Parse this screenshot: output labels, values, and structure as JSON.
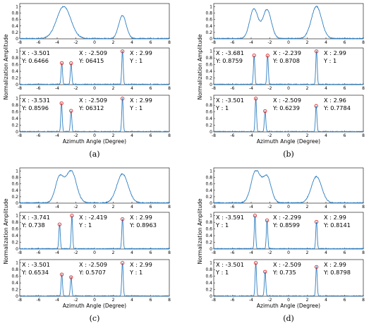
{
  "colors": {
    "line": "#2f7fc1",
    "marker": "#d62728",
    "axis": "#000000"
  },
  "common": {
    "x_ticks": [
      "-8",
      "-6",
      "-4",
      "-2",
      "0",
      "2",
      "4",
      "6",
      "8"
    ],
    "y_ticks": [
      "0",
      "0.2",
      "0.4",
      "0.6",
      "0.8",
      "1"
    ],
    "ylabel": "Normalization Amplitude",
    "xlabel": "Azimuth Angle (Degree)"
  },
  "chart_data": [
    {
      "caption": "(a)",
      "type": "line",
      "xlim": [
        -8,
        8
      ],
      "ylim": [
        0,
        1.1
      ],
      "grid": false,
      "broad_peaks": [
        {
          "x": -3.3,
          "y": 1.0,
          "w": 0.75
        },
        {
          "x": 2.99,
          "y": 0.72,
          "w": 0.4
        }
      ],
      "mid": {
        "peaks": [
          {
            "x": -3.501,
            "y": 0.6466
          },
          {
            "x": -2.509,
            "y": 0.6415
          },
          {
            "x": 2.99,
            "y": 1
          }
        ],
        "labels": [
          {
            "x": "X : -3.501",
            "y": "Y: 0.6466"
          },
          {
            "x": "X : -2.509",
            "y": "Y: 06415"
          },
          {
            "x": "X : 2.99",
            "y": "Y : 1"
          }
        ]
      },
      "bot": {
        "peaks": [
          {
            "x": -3.531,
            "y": 0.8596
          },
          {
            "x": -2.509,
            "y": 0.6312
          },
          {
            "x": 2.99,
            "y": 1
          }
        ],
        "labels": [
          {
            "x": "X : -3.531",
            "y": "Y: 0.8596"
          },
          {
            "x": "X : -2.509",
            "y": "Y: 06312"
          },
          {
            "x": "X : 2.99",
            "y": "Y : 1"
          }
        ]
      }
    },
    {
      "caption": "(b)",
      "type": "line",
      "xlim": [
        -8,
        8
      ],
      "ylim": [
        0,
        1.1
      ],
      "grid": false,
      "broad_peaks": [
        {
          "x": -3.7,
          "y": 0.92,
          "w": 0.45
        },
        {
          "x": -2.3,
          "y": 0.9,
          "w": 0.45
        },
        {
          "x": 2.99,
          "y": 1.0,
          "w": 0.55
        }
      ],
      "mid": {
        "peaks": [
          {
            "x": -3.681,
            "y": 0.8759
          },
          {
            "x": -2.239,
            "y": 0.8708
          },
          {
            "x": 2.99,
            "y": 1
          }
        ],
        "labels": [
          {
            "x": "X : -3.681",
            "y": "Y: 0.8759"
          },
          {
            "x": "X : -2.239",
            "y": "Y: 0.8708"
          },
          {
            "x": "X : 2.99",
            "y": "Y : 1"
          }
        ]
      },
      "bot": {
        "peaks": [
          {
            "x": -3.501,
            "y": 1
          },
          {
            "x": -2.509,
            "y": 0.6239
          },
          {
            "x": 2.96,
            "y": 0.7784
          }
        ],
        "labels": [
          {
            "x": "X : -3.501",
            "y": "Y : 1"
          },
          {
            "x": "X : -2.509",
            "y": "Y: 0.6239"
          },
          {
            "x": "X : 2.96",
            "y": "Y: 0.7784"
          }
        ]
      }
    },
    {
      "caption": "(c)",
      "type": "line",
      "xlim": [
        -8,
        8
      ],
      "ylim": [
        0,
        1.1
      ],
      "grid": false,
      "broad_peaks": [
        {
          "x": -3.75,
          "y": 0.78,
          "w": 0.45
        },
        {
          "x": -2.5,
          "y": 1.0,
          "w": 0.55
        },
        {
          "x": 2.99,
          "y": 0.9,
          "w": 0.6
        }
      ],
      "mid": {
        "peaks": [
          {
            "x": -3.741,
            "y": 0.738
          },
          {
            "x": -2.419,
            "y": 1
          },
          {
            "x": 2.99,
            "y": 0.8963
          }
        ],
        "labels": [
          {
            "x": "X : -3.741",
            "y": "Y: 0.738"
          },
          {
            "x": "X : -2.419",
            "y": "Y : 1"
          },
          {
            "x": "X : 2.99",
            "y": "Y: 0.8963"
          }
        ]
      },
      "bot": {
        "peaks": [
          {
            "x": -3.501,
            "y": 0.6534
          },
          {
            "x": -2.509,
            "y": 0.5707
          },
          {
            "x": 2.99,
            "y": 1
          }
        ],
        "labels": [
          {
            "x": "X : -3.501",
            "y": "Y: 0.6534"
          },
          {
            "x": "X : -2.509",
            "y": "Y: 0.5707"
          },
          {
            "x": "X : 2.99",
            "y": "Y : 1"
          }
        ]
      }
    },
    {
      "caption": "(d)",
      "type": "line",
      "xlim": [
        -8,
        8
      ],
      "ylim": [
        0,
        1.1
      ],
      "grid": false,
      "broad_peaks": [
        {
          "x": -3.5,
          "y": 1.0,
          "w": 0.5
        },
        {
          "x": -2.3,
          "y": 0.8,
          "w": 0.45
        },
        {
          "x": 2.99,
          "y": 0.82,
          "w": 0.55
        }
      ],
      "mid": {
        "peaks": [
          {
            "x": -3.591,
            "y": 1
          },
          {
            "x": -2.299,
            "y": 0.8599
          },
          {
            "x": 2.99,
            "y": 0.8141
          }
        ],
        "labels": [
          {
            "x": "X : -3.591",
            "y": "Y : 1"
          },
          {
            "x": "X : -2.299",
            "y": "Y: 0.8599"
          },
          {
            "x": "X : 2.99",
            "y": "Y: 0.8141"
          }
        ]
      },
      "bot": {
        "peaks": [
          {
            "x": -3.501,
            "y": 1
          },
          {
            "x": -2.509,
            "y": 0.735
          },
          {
            "x": 2.99,
            "y": 0.8798
          }
        ],
        "labels": [
          {
            "x": "X : -3.501",
            "y": "Y : 1"
          },
          {
            "x": "X : -2.509",
            "y": "Y: 0.735"
          },
          {
            "x": "X : 2.99",
            "y": "Y: 0.8798"
          }
        ]
      }
    }
  ]
}
